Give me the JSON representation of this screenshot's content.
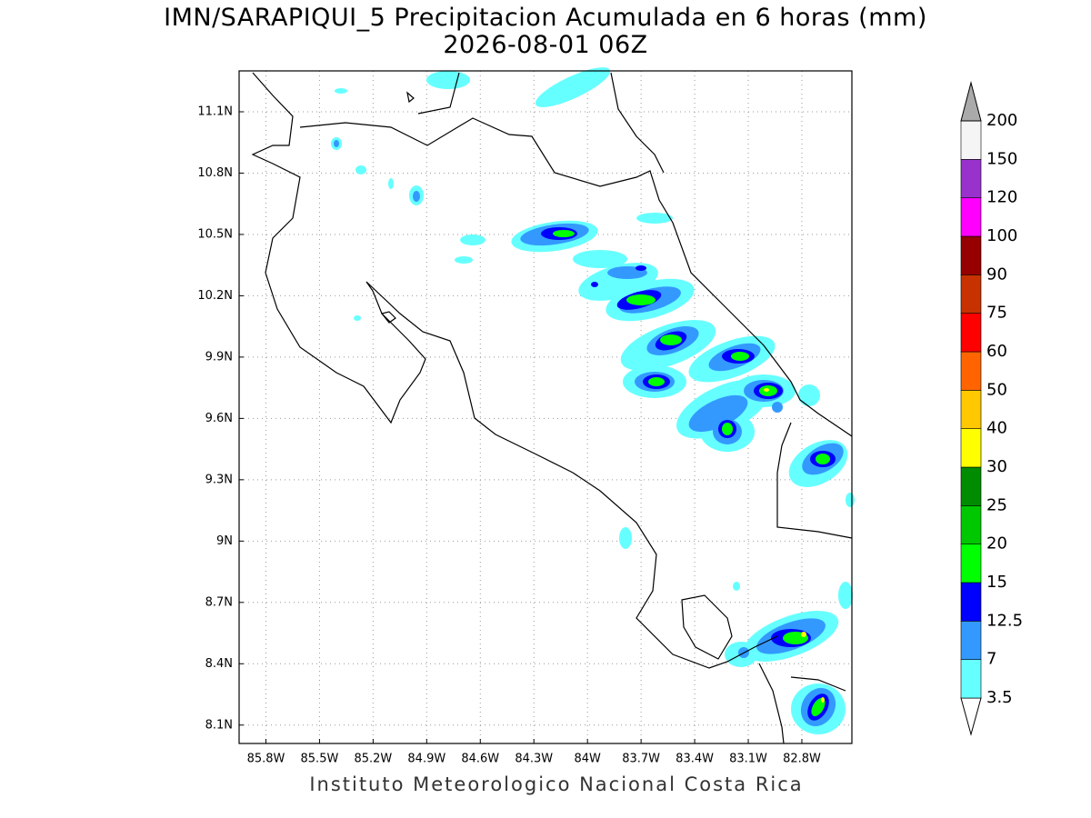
{
  "map": {
    "title": "IMN/SARAPIQUI_5 Precipitacion Acumulada en 6 horas (mm)",
    "subtitle": "2026-08-01 06Z",
    "footer": "Instituto Meteorologico Nacional Costa Rica",
    "xlim": [
      -85.95,
      -82.52
    ],
    "ylim": [
      8.01,
      11.3
    ],
    "grid": true,
    "lon_ticks": [
      {
        "value": -85.8,
        "label": "85.8W"
      },
      {
        "value": -85.5,
        "label": "85.5W"
      },
      {
        "value": -85.2,
        "label": "85.2W"
      },
      {
        "value": -84.9,
        "label": "84.9W"
      },
      {
        "value": -84.6,
        "label": "84.6W"
      },
      {
        "value": -84.3,
        "label": "84.3W"
      },
      {
        "value": -84.0,
        "label": "84W"
      },
      {
        "value": -83.7,
        "label": "83.7W"
      },
      {
        "value": -83.4,
        "label": "83.4W"
      },
      {
        "value": -83.1,
        "label": "83.1W"
      },
      {
        "value": -82.8,
        "label": "82.8W"
      }
    ],
    "lat_ticks": [
      {
        "value": 8.1,
        "label": "8.1N"
      },
      {
        "value": 8.4,
        "label": "8.4N"
      },
      {
        "value": 8.7,
        "label": "8.7N"
      },
      {
        "value": 9.0,
        "label": "9N"
      },
      {
        "value": 9.3,
        "label": "9.3N"
      },
      {
        "value": 9.6,
        "label": "9.6N"
      },
      {
        "value": 9.9,
        "label": "9.9N"
      },
      {
        "value": 10.2,
        "label": "10.2N"
      },
      {
        "value": 10.5,
        "label": "10.5N"
      },
      {
        "value": 10.8,
        "label": "10.8N"
      },
      {
        "value": 11.1,
        "label": "11.1N"
      }
    ],
    "colorbar": {
      "levels": [
        3.5,
        7,
        12.5,
        15,
        20,
        25,
        30,
        40,
        50,
        60,
        75,
        90,
        100,
        120,
        150,
        200
      ],
      "colors": [
        "#ffffff",
        "#66ffff",
        "#3399ff",
        "#0000ff",
        "#00ff00",
        "#00c800",
        "#008c00",
        "#ffff00",
        "#ffc800",
        "#ff6400",
        "#ff0000",
        "#c83200",
        "#960000",
        "#ff00ff",
        "#9932cc",
        "#f5f5f5",
        "#aaaaaa"
      ]
    }
  }
}
